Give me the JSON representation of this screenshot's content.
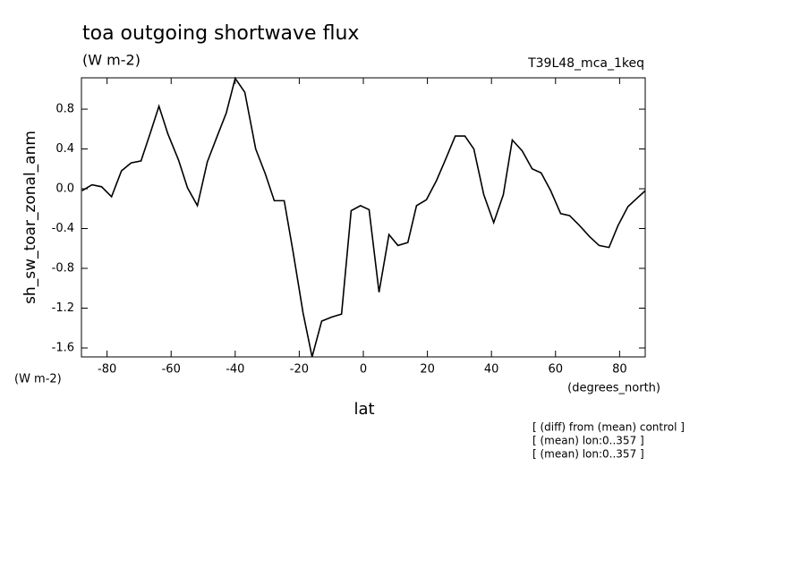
{
  "chart_data": {
    "type": "line",
    "title": "toa outgoing shortwave flux",
    "subtitle": "(W m-2)",
    "annotation": "T39L48_mca_1keq",
    "y_label": "sh_sw_toar_zonal_anm",
    "y_units": "(W m-2)",
    "x_label": "lat",
    "x_units": "(degrees_north)",
    "notes": [
      "[ (diff) from (mean) control ]",
      "[ (mean) lon:0..357 ]",
      "[ (mean) lon:0..357 ]"
    ],
    "x": [
      -87.8,
      -84.7,
      -81.7,
      -78.6,
      -75.5,
      -72.5,
      -69.4,
      -66.3,
      -63.8,
      -61,
      -57.7,
      -54.9,
      -51.8,
      -48.7,
      -45.6,
      -42.8,
      -40,
      -37,
      -33.6,
      -30.6,
      -27.8,
      -24.7,
      -21.9,
      -18.8,
      -16,
      -13,
      -9.9,
      -6.8,
      -3.8,
      -0.9,
      1.8,
      4.9,
      8,
      10.8,
      13.9,
      16.6,
      19.7,
      22.8,
      25.6,
      28.7,
      31.7,
      34.5,
      37.6,
      40.7,
      43.7,
      46.5,
      49.6,
      52.7,
      55.5,
      58.5,
      61.6,
      64.4,
      67.5,
      70.6,
      73.6,
      76.7,
      79.5,
      82.6,
      85.6,
      88
    ],
    "series": [
      {
        "color": "#000000",
        "values": [
          -0.02,
          0.04,
          0.02,
          -0.08,
          0.18,
          0.26,
          0.28,
          0.58,
          0.83,
          0.55,
          0.29,
          0.01,
          -0.17,
          0.27,
          0.53,
          0.76,
          1.11,
          0.97,
          0.4,
          0.15,
          -0.12,
          -0.12,
          -0.64,
          -1.25,
          -1.69,
          -1.33,
          -1.29,
          -1.26,
          -0.22,
          -0.17,
          -0.21,
          -1.04,
          -0.46,
          -0.57,
          -0.54,
          -0.17,
          -0.11,
          0.08,
          0.29,
          0.53,
          0.53,
          0.4,
          -0.06,
          -0.34,
          -0.06,
          0.49,
          0.38,
          0.2,
          0.16,
          -0.02,
          -0.25,
          -0.27,
          -0.37,
          -0.48,
          -0.57,
          -0.59,
          -0.37,
          -0.18,
          -0.09,
          -0.02
        ]
      }
    ],
    "xlim": [
      -88,
      88
    ],
    "ylim": [
      -1.69,
      1.115
    ],
    "xticks": [
      -80,
      -60,
      -40,
      -20,
      0,
      20,
      40,
      60,
      80
    ],
    "yticks": [
      -1.6,
      -1.2,
      -0.8,
      -0.4,
      {
        "value": 0,
        "label": "0.0"
      },
      0.4,
      0.8
    ]
  }
}
